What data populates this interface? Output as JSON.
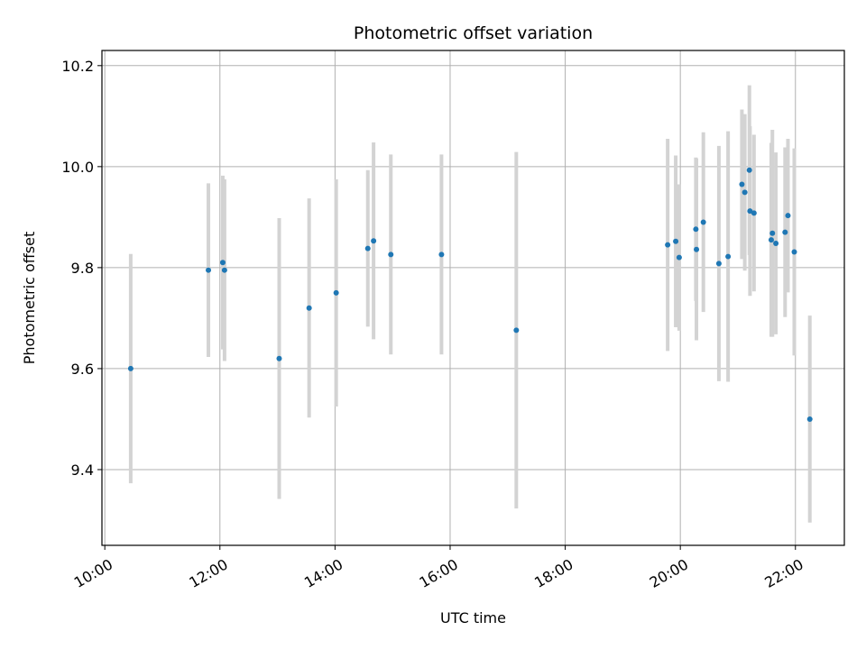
{
  "chart_data": {
    "type": "scatter",
    "title": "Photometric offset variation",
    "xlabel": "UTC time",
    "ylabel": "Photometric offset",
    "x_unit": "hours UTC",
    "xlim": [
      9.95,
      22.85
    ],
    "ylim": [
      9.25,
      10.23
    ],
    "x_ticks": [
      {
        "value": 10,
        "label": "10:00"
      },
      {
        "value": 12,
        "label": "12:00"
      },
      {
        "value": 14,
        "label": "14:00"
      },
      {
        "value": 16,
        "label": "16:00"
      },
      {
        "value": 18,
        "label": "18:00"
      },
      {
        "value": 20,
        "label": "20:00"
      },
      {
        "value": 22,
        "label": "22:00"
      }
    ],
    "y_ticks": [
      {
        "value": 9.4,
        "label": "9.4"
      },
      {
        "value": 9.6,
        "label": "9.6"
      },
      {
        "value": 9.8,
        "label": "9.8"
      },
      {
        "value": 10.0,
        "label": "10.0"
      },
      {
        "value": 10.2,
        "label": "10.2"
      }
    ],
    "grid": true,
    "marker_color": "#1f77b4",
    "errorbar_color": "#d3d3d3",
    "points": [
      {
        "x": 10.45,
        "y": 9.6,
        "err": 0.227
      },
      {
        "x": 11.8,
        "y": 9.795,
        "err": 0.172
      },
      {
        "x": 12.05,
        "y": 9.81,
        "err": 0.172
      },
      {
        "x": 12.08,
        "y": 9.795,
        "err": 0.18
      },
      {
        "x": 13.03,
        "y": 9.62,
        "err": 0.278
      },
      {
        "x": 13.55,
        "y": 9.72,
        "err": 0.217
      },
      {
        "x": 14.02,
        "y": 9.75,
        "err": 0.225
      },
      {
        "x": 14.57,
        "y": 9.838,
        "err": 0.155
      },
      {
        "x": 14.67,
        "y": 9.853,
        "err": 0.195
      },
      {
        "x": 14.97,
        "y": 9.826,
        "err": 0.198
      },
      {
        "x": 15.85,
        "y": 9.826,
        "err": 0.198
      },
      {
        "x": 17.15,
        "y": 9.676,
        "err": 0.353
      },
      {
        "x": 19.78,
        "y": 9.845,
        "err": 0.21
      },
      {
        "x": 19.92,
        "y": 9.852,
        "err": 0.17
      },
      {
        "x": 19.98,
        "y": 9.82,
        "err": 0.145
      },
      {
        "x": 20.27,
        "y": 9.876,
        "err": 0.142
      },
      {
        "x": 20.28,
        "y": 9.836,
        "err": 0.18
      },
      {
        "x": 20.4,
        "y": 9.89,
        "err": 0.178
      },
      {
        "x": 20.67,
        "y": 9.808,
        "err": 0.233
      },
      {
        "x": 20.83,
        "y": 9.822,
        "err": 0.248
      },
      {
        "x": 21.07,
        "y": 9.965,
        "err": 0.148
      },
      {
        "x": 21.12,
        "y": 9.949,
        "err": 0.155
      },
      {
        "x": 21.2,
        "y": 9.993,
        "err": 0.168
      },
      {
        "x": 21.21,
        "y": 9.912,
        "err": 0.168
      },
      {
        "x": 21.28,
        "y": 9.908,
        "err": 0.155
      },
      {
        "x": 21.58,
        "y": 9.855,
        "err": 0.192
      },
      {
        "x": 21.6,
        "y": 9.868,
        "err": 0.205
      },
      {
        "x": 21.66,
        "y": 9.848,
        "err": 0.18
      },
      {
        "x": 21.82,
        "y": 9.87,
        "err": 0.168
      },
      {
        "x": 21.87,
        "y": 9.903,
        "err": 0.152
      },
      {
        "x": 21.98,
        "y": 9.831,
        "err": 0.205
      },
      {
        "x": 22.25,
        "y": 9.5,
        "err": 0.205
      }
    ]
  }
}
